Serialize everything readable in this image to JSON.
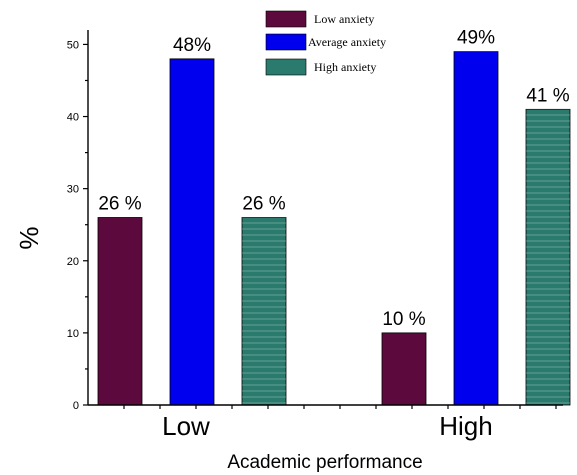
{
  "chart_data": {
    "type": "bar",
    "title": "",
    "xlabel": "Academic performance",
    "ylabel": "%",
    "categories": [
      "Low",
      "High"
    ],
    "ylim": [
      0,
      52
    ],
    "yticks": [
      0,
      10,
      20,
      30,
      40,
      50
    ],
    "grid": false,
    "legend_position": "top",
    "series": [
      {
        "name": "Low anxiety",
        "values": [
          26,
          10
        ],
        "labels": [
          "26 %",
          "10 %"
        ],
        "color": "#5c0a3e"
      },
      {
        "name": "Average anxiety",
        "values": [
          48,
          49
        ],
        "labels": [
          "48%",
          "49%"
        ],
        "color": "#0000ee"
      },
      {
        "name": "High anxiety",
        "values": [
          26,
          41
        ],
        "labels": [
          "26 %",
          "41 %"
        ],
        "color": "#2a7a6e"
      }
    ]
  }
}
